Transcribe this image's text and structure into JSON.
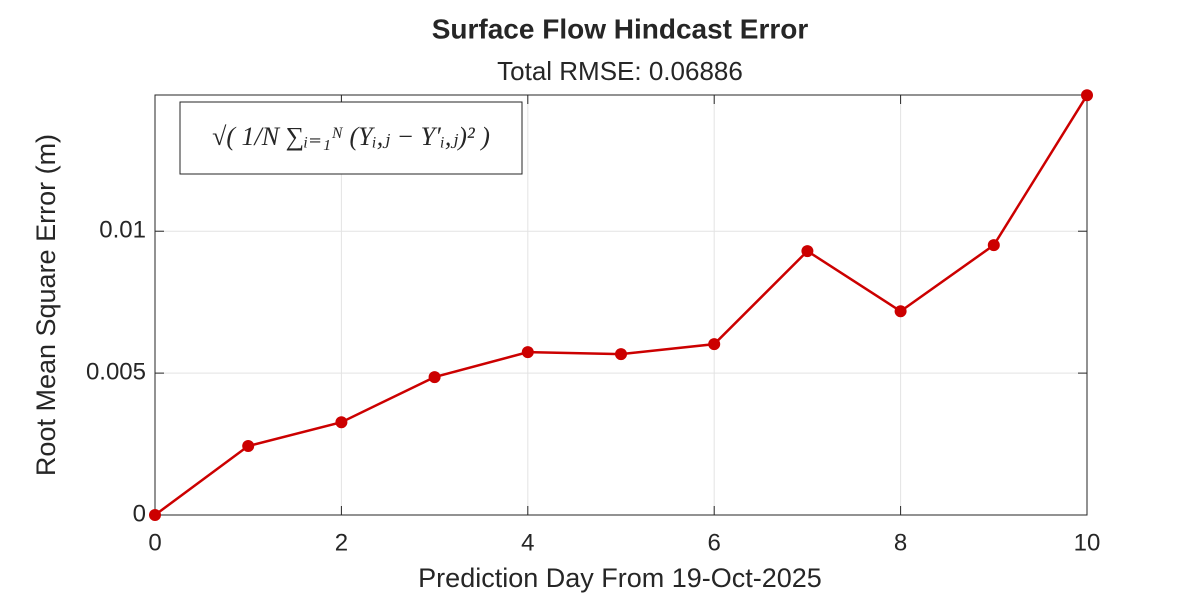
{
  "chart_data": {
    "type": "line",
    "title": "Surface Flow Hindcast Error",
    "subtitle": "Total RMSE: 0.06886",
    "annotation": "√( 1/N ∑ᵢ₌₁ᴺ (Yᵢ,ⱼ − Y′ᵢ,ⱼ)² )",
    "xlabel": "Prediction Day From 19-Oct-2025",
    "ylabel": "Root Mean Square Error (m)",
    "x": [
      0,
      1,
      2,
      3,
      4,
      5,
      6,
      7,
      8,
      9,
      10
    ],
    "series": [
      {
        "name": "RMSE",
        "color": "#cc0000",
        "values": [
          0,
          0.00243,
          0.00327,
          0.00486,
          0.00574,
          0.00567,
          0.00602,
          0.0093,
          0.00718,
          0.00951,
          0.01479
        ]
      }
    ],
    "xlim": [
      0,
      10
    ],
    "xticks": [
      0,
      2,
      4,
      6,
      8,
      10
    ],
    "ylim": [
      0,
      0.0148
    ],
    "yticks": [
      0,
      0.005,
      0.01
    ],
    "grid": true
  }
}
